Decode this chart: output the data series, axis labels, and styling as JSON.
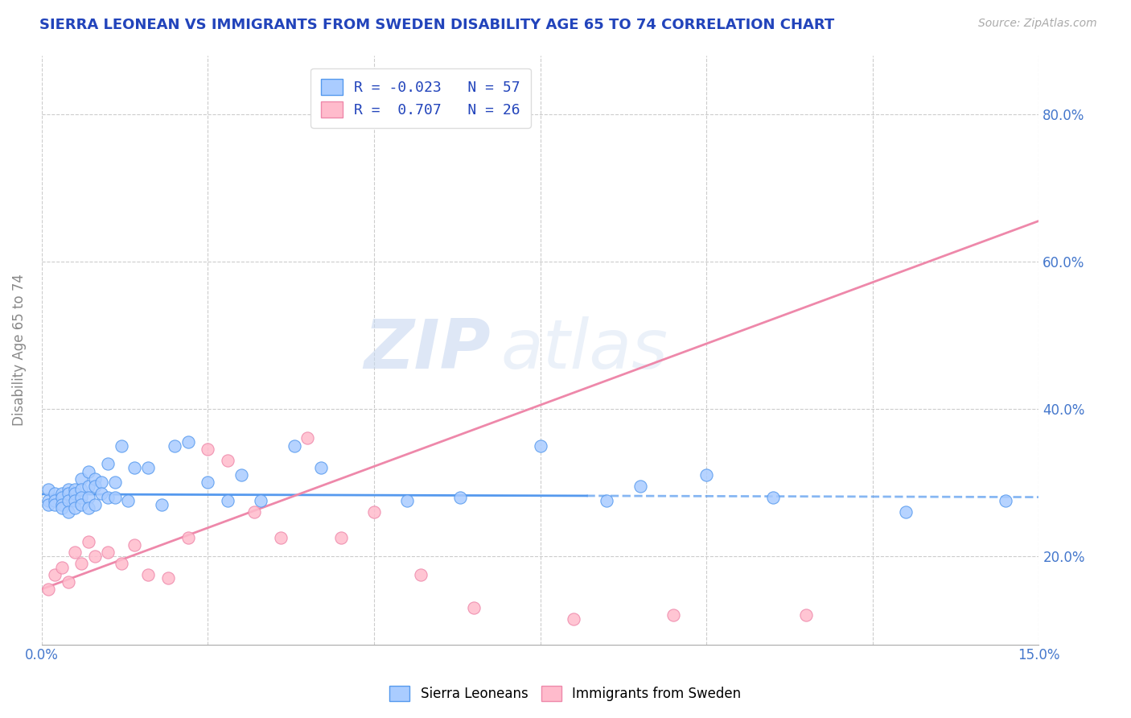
{
  "title": "SIERRA LEONEAN VS IMMIGRANTS FROM SWEDEN DISABILITY AGE 65 TO 74 CORRELATION CHART",
  "source_text": "Source: ZipAtlas.com",
  "ylabel": "Disability Age 65 to 74",
  "xlim": [
    0.0,
    0.15
  ],
  "ylim": [
    0.08,
    0.88
  ],
  "xticks": [
    0.0,
    0.025,
    0.05,
    0.075,
    0.1,
    0.125,
    0.15
  ],
  "xticklabels_left": "0.0%",
  "xticklabels_right": "15.0%",
  "ytick_positions": [
    0.2,
    0.4,
    0.6,
    0.8
  ],
  "ytick_labels": [
    "20.0%",
    "40.0%",
    "60.0%",
    "80.0%"
  ],
  "sierra_leonean_x": [
    0.001,
    0.001,
    0.001,
    0.002,
    0.002,
    0.002,
    0.003,
    0.003,
    0.003,
    0.003,
    0.004,
    0.004,
    0.004,
    0.004,
    0.005,
    0.005,
    0.005,
    0.005,
    0.006,
    0.006,
    0.006,
    0.006,
    0.007,
    0.007,
    0.007,
    0.007,
    0.008,
    0.008,
    0.008,
    0.009,
    0.009,
    0.01,
    0.01,
    0.011,
    0.011,
    0.012,
    0.013,
    0.014,
    0.016,
    0.018,
    0.02,
    0.022,
    0.025,
    0.028,
    0.03,
    0.033,
    0.038,
    0.042,
    0.055,
    0.063,
    0.075,
    0.085,
    0.09,
    0.1,
    0.11,
    0.13,
    0.145
  ],
  "sierra_leonean_y": [
    0.29,
    0.275,
    0.27,
    0.285,
    0.275,
    0.27,
    0.285,
    0.28,
    0.27,
    0.265,
    0.29,
    0.285,
    0.275,
    0.26,
    0.29,
    0.285,
    0.275,
    0.265,
    0.305,
    0.29,
    0.28,
    0.27,
    0.315,
    0.295,
    0.28,
    0.265,
    0.305,
    0.295,
    0.27,
    0.3,
    0.285,
    0.325,
    0.28,
    0.3,
    0.28,
    0.35,
    0.275,
    0.32,
    0.32,
    0.27,
    0.35,
    0.355,
    0.3,
    0.275,
    0.31,
    0.275,
    0.35,
    0.32,
    0.275,
    0.28,
    0.35,
    0.275,
    0.295,
    0.31,
    0.28,
    0.26,
    0.275
  ],
  "sweden_x": [
    0.001,
    0.002,
    0.003,
    0.004,
    0.005,
    0.006,
    0.007,
    0.008,
    0.01,
    0.012,
    0.014,
    0.016,
    0.019,
    0.022,
    0.025,
    0.028,
    0.032,
    0.036,
    0.04,
    0.045,
    0.05,
    0.057,
    0.065,
    0.08,
    0.095,
    0.115
  ],
  "sweden_y": [
    0.155,
    0.175,
    0.185,
    0.165,
    0.205,
    0.19,
    0.22,
    0.2,
    0.205,
    0.19,
    0.215,
    0.175,
    0.17,
    0.225,
    0.345,
    0.33,
    0.26,
    0.225,
    0.36,
    0.225,
    0.26,
    0.175,
    0.13,
    0.115,
    0.12,
    0.12
  ],
  "sl_trend_x": [
    0.0,
    0.15
  ],
  "sl_trend_y": [
    0.284,
    0.28
  ],
  "sw_trend_x": [
    0.0,
    0.15
  ],
  "sw_trend_y": [
    0.155,
    0.655
  ],
  "sl_color": "#aaccff",
  "sw_color": "#ffbbcc",
  "sl_line_color": "#5599ee",
  "sw_line_color": "#ee88aa",
  "sl_R": -0.023,
  "sl_N": 57,
  "sw_R": 0.707,
  "sw_N": 26,
  "watermark_zip": "ZIP",
  "watermark_atlas": "atlas",
  "title_color": "#2244bb",
  "tick_color": "#4477cc",
  "grid_color": "#cccccc",
  "background_color": "#ffffff"
}
